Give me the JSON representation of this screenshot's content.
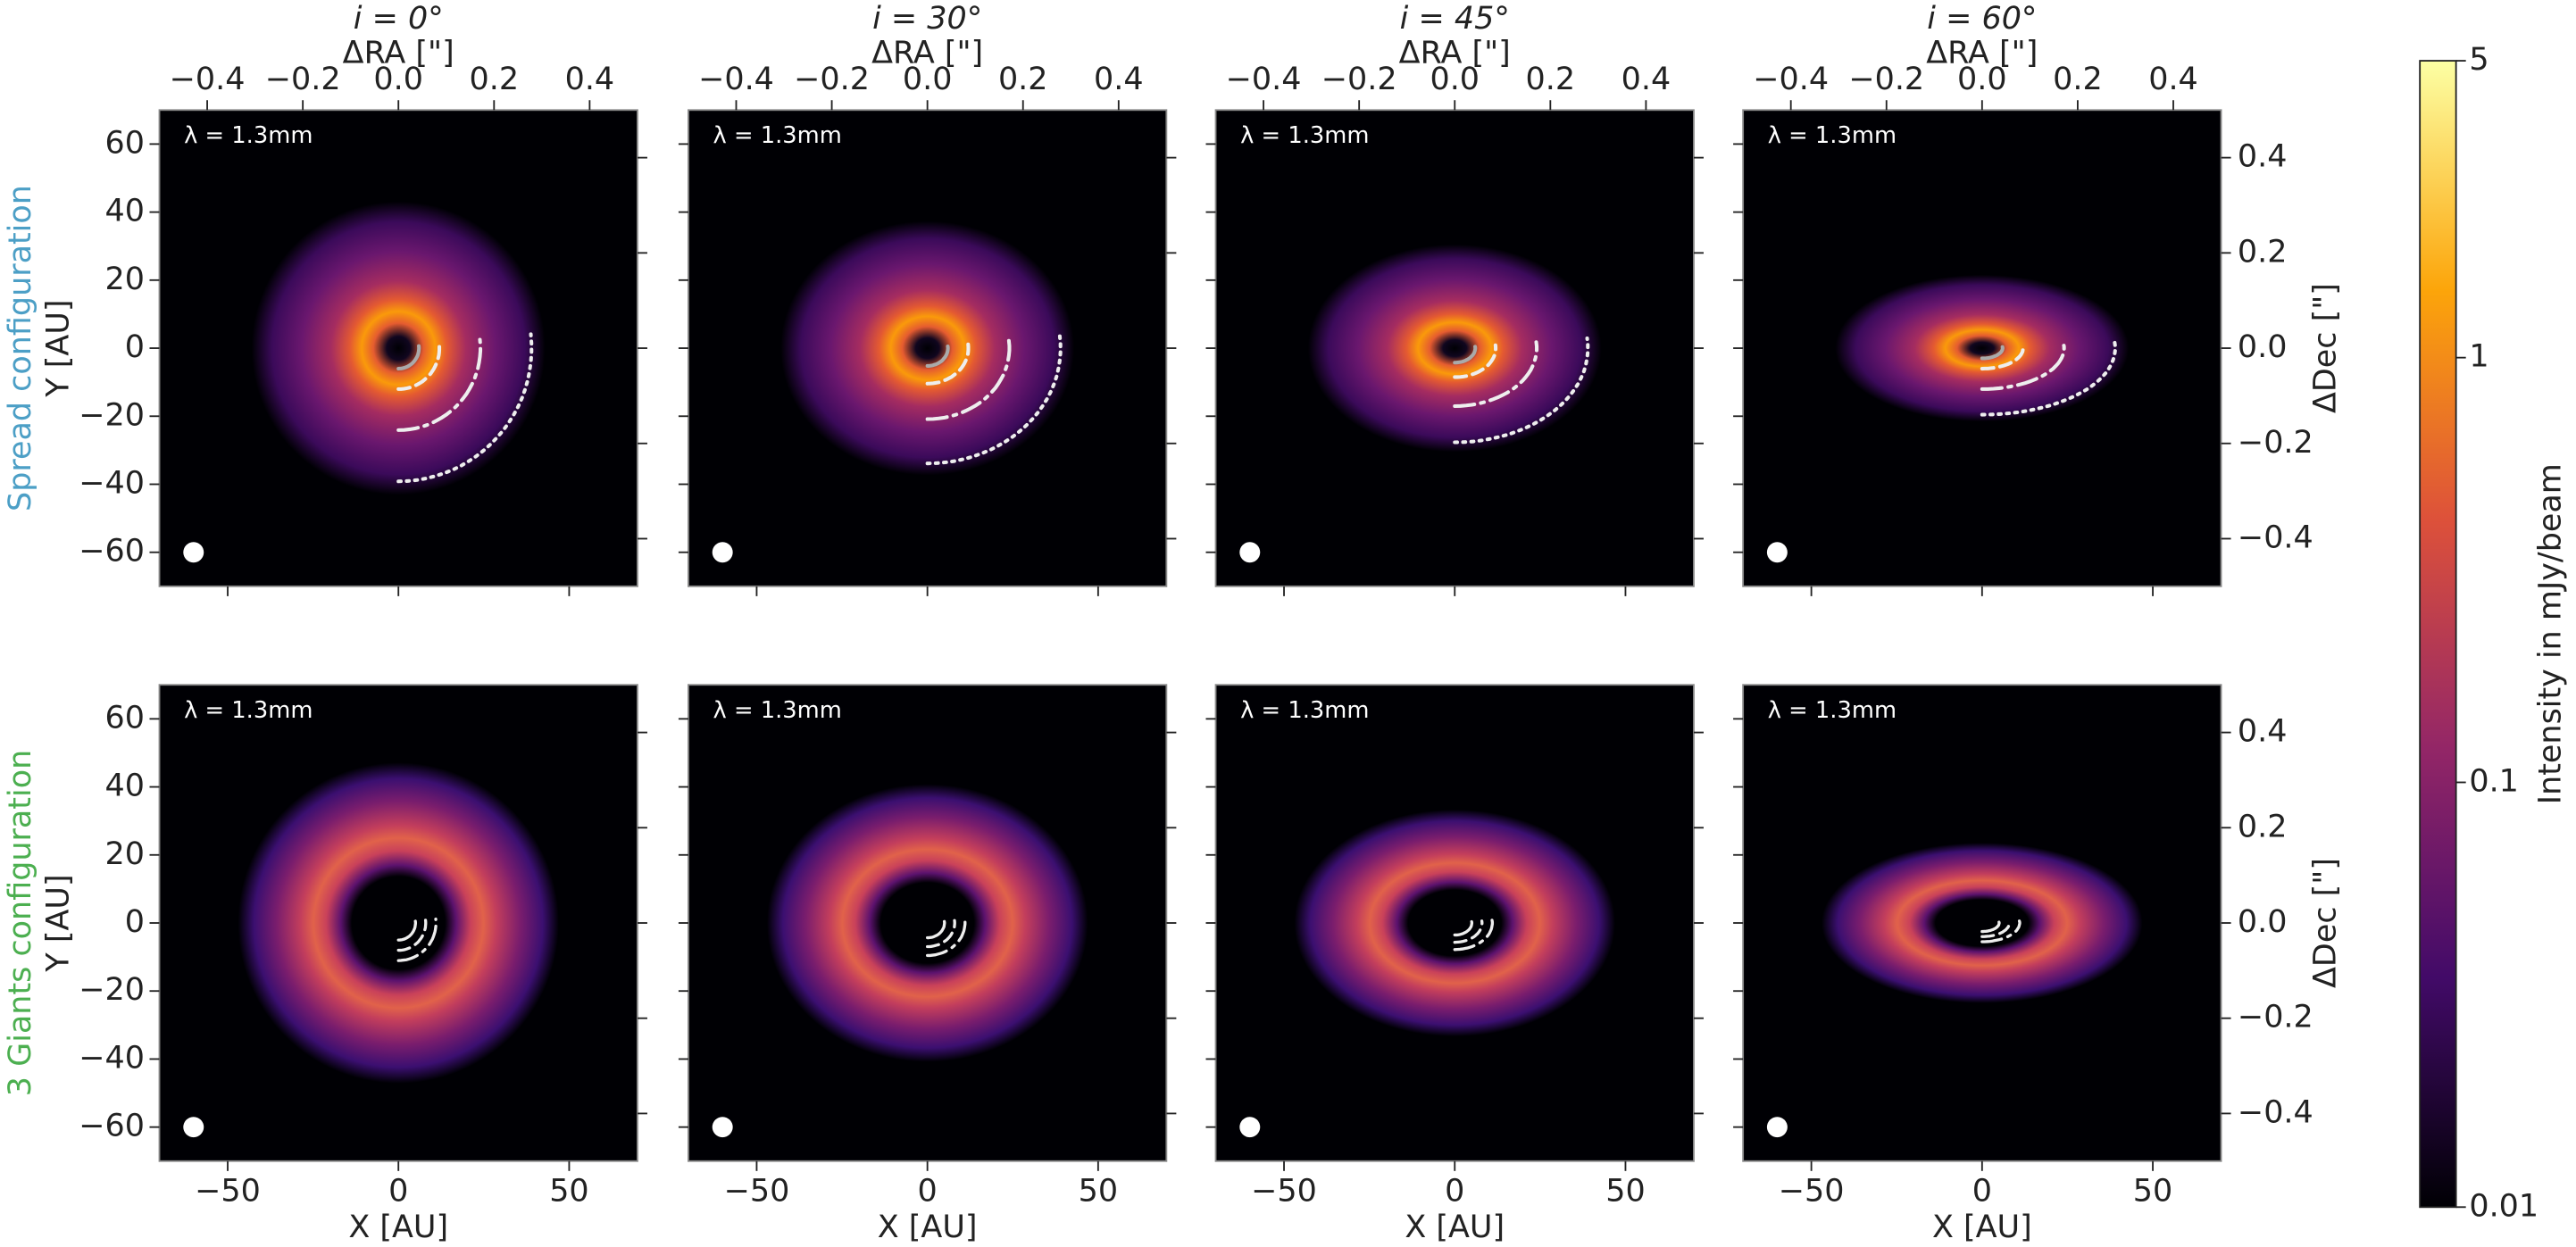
{
  "chart_data": {
    "type": "image_grid",
    "columns": [
      {
        "value": 0,
        "label": "i = 0°"
      },
      {
        "value": 30,
        "label": "i = 30°"
      },
      {
        "value": 45,
        "label": "i = 45°"
      },
      {
        "value": 60,
        "label": "i = 60°"
      }
    ],
    "rows": [
      {
        "label": "Spread configuration",
        "color": "#4c9fc6"
      },
      {
        "label": "3 Giants configuration",
        "color": "#4caf50"
      }
    ],
    "annotation": "λ = 1.3mm",
    "xlabel": "X [AU]",
    "ylabel": "Y [AU]",
    "x2label": "ΔRA [\"]",
    "y2label": "ΔDec [\"]",
    "xlim": [
      -70,
      70
    ],
    "xticks": [
      {
        "value": -50,
        "label": "−50"
      },
      0,
      50
    ],
    "ylim": [
      -70,
      70
    ],
    "yticks": [
      {
        "value": -60,
        "label": "−60"
      },
      {
        "value": -40,
        "label": "−40"
      },
      {
        "value": -20,
        "label": "−20"
      },
      0,
      20,
      40,
      60
    ],
    "x2lim": [
      -0.5,
      0.5
    ],
    "x2ticks": [
      {
        "value": -0.4,
        "label": "−0.4"
      },
      {
        "value": -0.2,
        "label": "−0.2"
      },
      {
        "value": 0,
        "label": "0.0"
      },
      0.2,
      0.4
    ],
    "y2lim": [
      -0.5,
      0.5
    ],
    "y2ticks": [
      {
        "value": -0.4,
        "label": "−0.4"
      },
      {
        "value": -0.2,
        "label": "−0.2"
      },
      {
        "value": 0,
        "label": "0.0"
      },
      0.2,
      0.4
    ],
    "colorbar": {
      "label": "Intensity in mJy/beam",
      "lim": [
        0.01,
        5
      ],
      "ticks": [
        0.01,
        0.1,
        1,
        5
      ],
      "scale": "log",
      "colormap": [
        "#000004",
        "#420a68",
        "#932667",
        "#dd513a",
        "#fca50a",
        "#fcffa4"
      ]
    }
  }
}
